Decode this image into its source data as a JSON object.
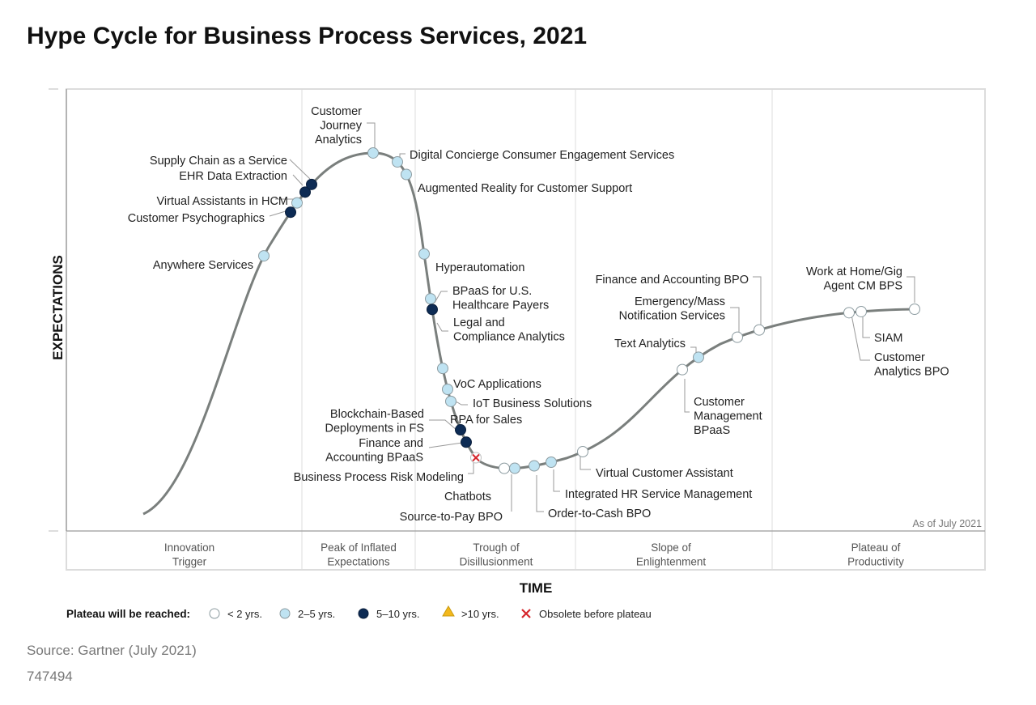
{
  "title": "Hype Cycle for Business Process Services, 2021",
  "source": "Source: Gartner (July 2021)",
  "doc_id": "747494",
  "chart_data": {
    "type": "hype-cycle",
    "title": "Hype Cycle for Business Process Services, 2021",
    "xlabel": "TIME",
    "ylabel": "EXPECTATIONS",
    "as_of": "As of July 2021",
    "phases": [
      [
        "Innovation",
        "Trigger"
      ],
      [
        "Peak of Inflated",
        "Expectations"
      ],
      [
        "Trough of",
        "Disillusionment"
      ],
      [
        "Slope of",
        "Enlightenment"
      ],
      [
        "Plateau of",
        "Productivity"
      ]
    ],
    "legend": {
      "title": "Plateau will be reached:",
      "items": [
        {
          "key": "lt2",
          "label": "< 2 yrs."
        },
        {
          "key": "2to5",
          "label": "2–5 yrs."
        },
        {
          "key": "5to10",
          "label": "5–10 yrs."
        },
        {
          "key": "gt10",
          "label": ">10 yrs."
        },
        {
          "key": "obsolete",
          "label": "Obsolete before plateau"
        }
      ]
    },
    "colors": {
      "lt2": "#ffffff",
      "2to5": "#bfe3f2",
      "5to10": "#0d2b54",
      "gt10": "#f3b81c",
      "obsolete": "#d6262c",
      "curve": "#7a7f7d"
    },
    "technologies": [
      {
        "name": [
          "Anywhere Services"
        ],
        "cat": "2to5"
      },
      {
        "name": [
          "Customer Psychographics"
        ],
        "cat": "5to10"
      },
      {
        "name": [
          "Virtual Assistants in HCM"
        ],
        "cat": "2to5"
      },
      {
        "name": [
          "EHR Data Extraction"
        ],
        "cat": "5to10"
      },
      {
        "name": [
          "Supply Chain as a Service"
        ],
        "cat": "5to10"
      },
      {
        "name": [
          "Customer",
          "Journey",
          "Analytics"
        ],
        "cat": "2to5"
      },
      {
        "name": [
          "Digital Concierge Consumer Engagement Services"
        ],
        "cat": "2to5"
      },
      {
        "name": [
          "Augmented Reality for Customer Support"
        ],
        "cat": "2to5"
      },
      {
        "name": [
          "Hyperautomation"
        ],
        "cat": "2to5"
      },
      {
        "name": [
          "BPaaS for U.S.",
          "Healthcare Payers"
        ],
        "cat": "2to5"
      },
      {
        "name": [
          "Legal and",
          "Compliance Analytics"
        ],
        "cat": "5to10"
      },
      {
        "name": [
          "VoC Applications"
        ],
        "cat": "2to5"
      },
      {
        "name": [
          "IoT Business Solutions"
        ],
        "cat": "2to5"
      },
      {
        "name": [
          "RPA for Sales"
        ],
        "cat": "2to5"
      },
      {
        "name": [
          "Blockchain-Based",
          "Deployments in FS"
        ],
        "cat": "5to10"
      },
      {
        "name": [
          "Finance and",
          "Accounting BPaaS"
        ],
        "cat": "5to10"
      },
      {
        "name": [
          "Business Process Risk Modeling"
        ],
        "cat": "obsolete"
      },
      {
        "name": [
          "Chatbots"
        ],
        "cat": "lt2"
      },
      {
        "name": [
          "Source-to-Pay BPO"
        ],
        "cat": "2to5"
      },
      {
        "name": [
          "Order-to-Cash BPO"
        ],
        "cat": "2to5"
      },
      {
        "name": [
          "Integrated HR Service Management"
        ],
        "cat": "2to5"
      },
      {
        "name": [
          "Virtual Customer Assistant"
        ],
        "cat": "lt2"
      },
      {
        "name": [
          "Customer",
          "Management",
          "BPaaS"
        ],
        "cat": "lt2"
      },
      {
        "name": [
          "Text Analytics"
        ],
        "cat": "2to5"
      },
      {
        "name": [
          "Emergency/Mass",
          "Notification Services"
        ],
        "cat": "lt2"
      },
      {
        "name": [
          "Finance and Accounting BPO"
        ],
        "cat": "lt2"
      },
      {
        "name": [
          "Work at Home/Gig",
          "Agent CM BPS"
        ],
        "cat": "lt2"
      },
      {
        "name": [
          "SIAM"
        ],
        "cat": "lt2"
      },
      {
        "name": [
          "Customer",
          "Analytics BPO"
        ],
        "cat": "lt2"
      }
    ]
  }
}
